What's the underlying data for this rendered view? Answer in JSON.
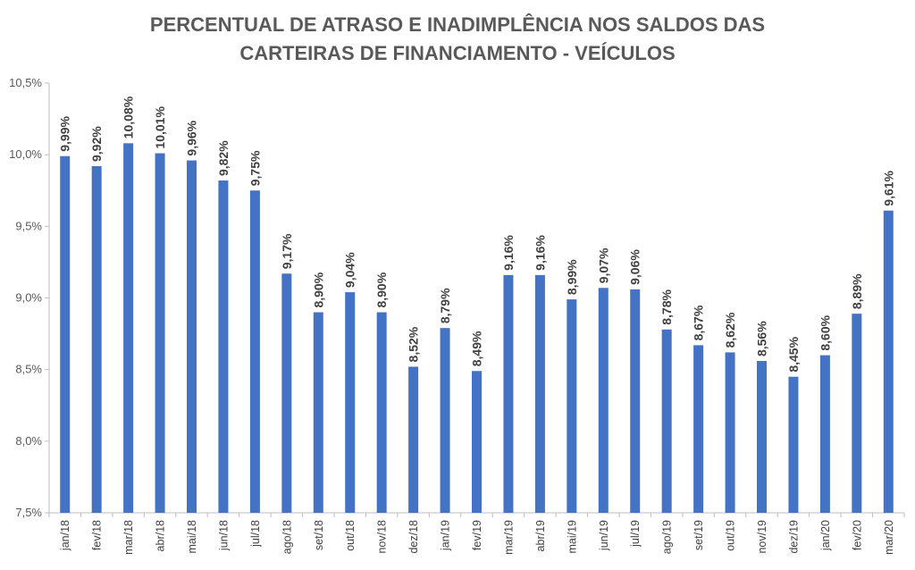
{
  "chart_data": {
    "type": "bar",
    "title_lines": [
      "PERCENTUAL DE ATRASO E INADIMPLÊNCIA NOS SALDOS DAS",
      "CARTEIRAS DE FINANCIAMENTO - VEÍCULOS"
    ],
    "xlabel": "",
    "ylabel": "",
    "ylim": [
      7.5,
      10.5
    ],
    "yticks": [
      7.5,
      8.0,
      8.5,
      9.0,
      9.5,
      10.0,
      10.5
    ],
    "ytick_labels": [
      "7,5%",
      "8,0%",
      "8,5%",
      "9,0%",
      "9,5%",
      "10,0%",
      "10,5%"
    ],
    "categories": [
      "jan/18",
      "fev/18",
      "mar/18",
      "abr/18",
      "mai/18",
      "jun/18",
      "jul/18",
      "ago/18",
      "set/18",
      "out/18",
      "nov/18",
      "dez/18",
      "jan/19",
      "fev/19",
      "mar/19",
      "abr/19",
      "mai/19",
      "jun/19",
      "jul/19",
      "ago/19",
      "set/19",
      "out/19",
      "nov/19",
      "dez/19",
      "jan/20",
      "fev/20",
      "mar/20"
    ],
    "values": [
      9.99,
      9.92,
      10.08,
      10.01,
      9.96,
      9.82,
      9.75,
      9.17,
      8.9,
      9.04,
      8.9,
      8.52,
      8.79,
      8.49,
      9.16,
      9.16,
      8.99,
      9.07,
      9.06,
      8.78,
      8.67,
      8.62,
      8.56,
      8.45,
      8.6,
      8.89,
      9.61
    ],
    "data_labels": [
      "9,99%",
      "9,92%",
      "10,08%",
      "10,01%",
      "9,96%",
      "9,82%",
      "9,75%",
      "9,17%",
      "8,90%",
      "9,04%",
      "8,90%",
      "8,52%",
      "8,79%",
      "8,49%",
      "9,16%",
      "9,16%",
      "8,99%",
      "9,07%",
      "9,06%",
      "8,78%",
      "8,67%",
      "8,62%",
      "8,56%",
      "8,45%",
      "8,60%",
      "8,89%",
      "9,61%"
    ],
    "bar_color": "#4472C4",
    "grid": false,
    "legend": "none"
  }
}
